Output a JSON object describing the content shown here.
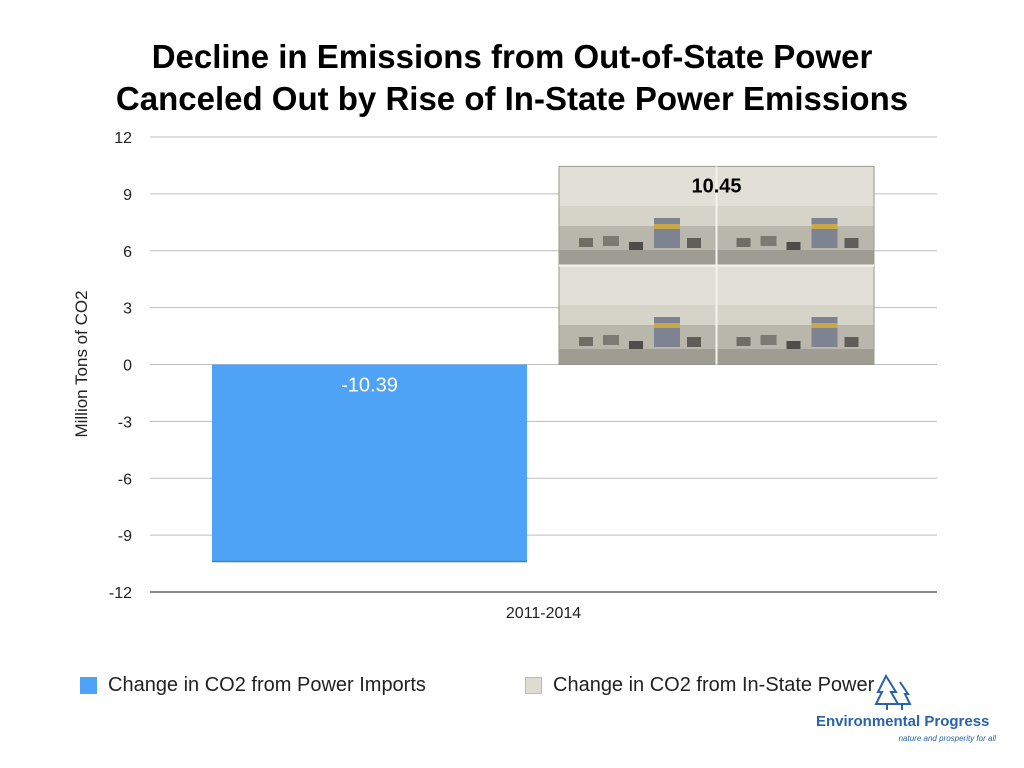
{
  "title_lines": [
    "Decline in Emissions from Out-of-State Power",
    "Canceled Out by Rise of In-State Power Emissions"
  ],
  "chart_data": {
    "type": "bar",
    "categories": [
      "2011-2014"
    ],
    "series": [
      {
        "name": "Change in CO2 from Power Imports",
        "values": [
          -10.39
        ],
        "color": "#4fa3f7",
        "fill": "solid"
      },
      {
        "name": "Change in CO2 from In-State Power",
        "values": [
          10.45
        ],
        "color": "#d8d6cc",
        "fill": "smog-photo-texture"
      }
    ],
    "data_labels": [
      "-10.39",
      "10.45"
    ],
    "ylabel": "Million Tons of CO2",
    "ylim": [
      -12,
      12
    ],
    "yticks": [
      12,
      9,
      6,
      3,
      0,
      -3,
      -6,
      -9,
      -12
    ],
    "grid": true,
    "legend_position": "bottom"
  },
  "logo": {
    "name": "Environmental Progress",
    "tagline": "nature and prosperity for all",
    "color": "#2a64a8"
  }
}
